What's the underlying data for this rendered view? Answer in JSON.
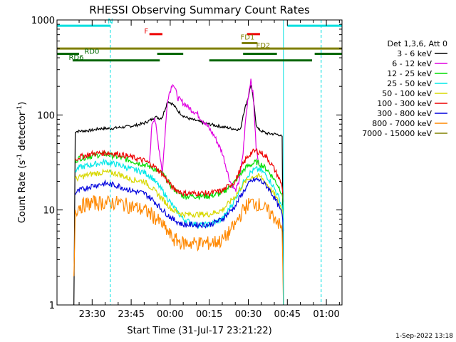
{
  "chart_data": {
    "type": "line",
    "title": "RHESSI Observing Summary Count Rates",
    "xlabel": "Start Time (31-Jul-17 23:21:22)",
    "ylabel_parts": [
      "Count Rate (s",
      "-1",
      " detector",
      "-1",
      ")"
    ],
    "footer": "1-Sep-2022 13:18",
    "scale_y": "log",
    "xlim_min": [
      -8.5,
      101
    ],
    "ylim": [
      1,
      1000
    ],
    "x_ticks": [
      {
        "v": 5,
        "label": "23:30"
      },
      {
        "v": 20,
        "label": "23:45"
      },
      {
        "v": 35,
        "label": "00:00"
      },
      {
        "v": 50,
        "label": "00:15"
      },
      {
        "v": 65,
        "label": "00:30"
      },
      {
        "v": 80,
        "label": "00:45"
      },
      {
        "v": 95,
        "label": "01:00"
      }
    ],
    "y_ticks": [
      {
        "v": 1,
        "label": "1"
      },
      {
        "v": 10,
        "label": "10"
      },
      {
        "v": 100,
        "label": "100"
      },
      {
        "v": 1000,
        "label": "1000"
      }
    ],
    "legend_header": "Det 1,3,6, Att 0",
    "legend_placement": "right",
    "series": [
      {
        "name": "3 - 6 keV",
        "color": "#000000",
        "x": [
          -2,
          -1.5,
          5,
          8,
          12,
          16,
          18,
          22,
          25,
          28,
          29,
          31,
          32,
          34,
          36,
          38,
          40,
          42,
          45,
          48,
          52,
          55,
          60,
          62,
          63,
          64,
          65,
          66,
          67,
          68,
          69,
          70,
          72,
          75,
          77,
          78,
          78.5
        ],
        "y": [
          1,
          67,
          69,
          72,
          72,
          74,
          75,
          78,
          82,
          90,
          96,
          92,
          95,
          140,
          130,
          110,
          98,
          92,
          87,
          82,
          78,
          75,
          71,
          70,
          100,
          125,
          155,
          210,
          140,
          80,
          70,
          68,
          64,
          63,
          62,
          58,
          1
        ]
      },
      {
        "name": "6 - 12 keV",
        "color": "#e000e0",
        "x": [
          27,
          28,
          29,
          30,
          32,
          34,
          36,
          38,
          42,
          45,
          48,
          52,
          55,
          58,
          60,
          61,
          62,
          63,
          64,
          65,
          66,
          67,
          68,
          69
        ],
        "y": [
          30,
          82,
          95,
          60,
          25,
          150,
          220,
          150,
          120,
          105,
          85,
          60,
          40,
          20,
          16,
          18,
          25,
          40,
          90,
          160,
          240,
          150,
          45,
          30
        ]
      },
      {
        "name": "12 - 25 keV",
        "color": "#00dd00",
        "x": [
          -1.5,
          0,
          5,
          10,
          15,
          20,
          25,
          28,
          32,
          36,
          40,
          45,
          50,
          55,
          60,
          62,
          64,
          66,
          68,
          70,
          72,
          74,
          76,
          78,
          78.5
        ],
        "y": [
          33,
          35,
          37,
          39,
          36,
          33,
          30,
          28,
          24,
          17,
          14,
          14,
          14,
          15,
          20,
          24,
          28,
          30,
          32,
          30,
          27,
          23,
          19,
          15,
          10
        ]
      },
      {
        "name": "25 - 50 keV",
        "color": "#00e8e8",
        "x": [
          -1.5,
          0,
          5,
          10,
          15,
          20,
          25,
          28,
          32,
          36,
          40,
          45,
          50,
          55,
          60,
          62,
          64,
          66,
          68,
          70,
          72,
          74,
          76,
          78,
          78.5
        ],
        "y": [
          26,
          28,
          30,
          32,
          30,
          27,
          25,
          22,
          16,
          11,
          8,
          7,
          7,
          8,
          13,
          17,
          22,
          25,
          27,
          26,
          23,
          19,
          15,
          11,
          8
        ]
      },
      {
        "name": "50 - 100 keV",
        "color": "#d8d800",
        "x": [
          -1.5,
          0,
          5,
          10,
          15,
          20,
          25,
          28,
          32,
          36,
          40,
          45,
          50,
          55,
          60,
          62,
          64,
          66,
          68,
          70,
          72,
          74,
          76,
          78,
          78.5
        ],
        "y": [
          21,
          22,
          24,
          25,
          24,
          21,
          20,
          17,
          13,
          10,
          9,
          9,
          9,
          10,
          14,
          17,
          20,
          22,
          23,
          22,
          19,
          16,
          13,
          10,
          8
        ]
      },
      {
        "name": "100 - 300 keV",
        "color": "#ee0000",
        "x": [
          -1.5,
          0,
          5,
          10,
          15,
          20,
          25,
          28,
          32,
          36,
          40,
          45,
          50,
          55,
          60,
          62,
          64,
          66,
          68,
          70,
          72,
          74,
          76,
          78,
          78.5
        ],
        "y": [
          34,
          36,
          39,
          40,
          39,
          36,
          33,
          30,
          24,
          17,
          15,
          15,
          15,
          16,
          20,
          27,
          34,
          40,
          42,
          40,
          36,
          30,
          24,
          18,
          12
        ]
      },
      {
        "name": "300 - 800 keV",
        "color": "#0000dd",
        "x": [
          -1.5,
          0,
          5,
          10,
          15,
          20,
          25,
          28,
          32,
          36,
          40,
          45,
          50,
          55,
          60,
          62,
          64,
          66,
          68,
          70,
          72,
          74,
          76,
          78,
          78.5
        ],
        "y": [
          15,
          16,
          18,
          19,
          18,
          16,
          15,
          13,
          10,
          8,
          7,
          7,
          7,
          8,
          11,
          14,
          17,
          20,
          21,
          20,
          18,
          15,
          12,
          9,
          6
        ]
      },
      {
        "name": "800 - 7000 keV",
        "color": "#ff8800",
        "x": [
          -2,
          -1.5,
          0,
          5,
          10,
          15,
          20,
          25,
          28,
          32,
          36,
          40,
          45,
          50,
          55,
          60,
          62,
          64,
          66,
          68,
          70,
          72,
          74,
          76,
          78,
          78.5
        ],
        "y": [
          2,
          10,
          11,
          12,
          12,
          12,
          11,
          10,
          9,
          7,
          5,
          4.5,
          4.5,
          4.5,
          4.8,
          7,
          9,
          11,
          12,
          12,
          11,
          10,
          9,
          8,
          6,
          1
        ]
      },
      {
        "name": "7000 - 15000 keV",
        "color": "#808000",
        "x": [
          -8.5,
          101
        ],
        "y": [
          500,
          500
        ]
      }
    ],
    "annotations": [
      {
        "label": "N",
        "x": 11,
        "level": 920,
        "color": "#00e0e0"
      },
      {
        "label": "F",
        "x": 25,
        "level": 720,
        "color": "#ee0000"
      },
      {
        "label": "FD1",
        "x": 62,
        "level": 620,
        "color": "#808000"
      },
      {
        "label": "FD2",
        "x": 68,
        "level": 510,
        "color": "#808000"
      },
      {
        "label": "RD0",
        "x": 2,
        "level": 440,
        "color": "#006600"
      },
      {
        "label": "RD6",
        "x": -4,
        "level": 380,
        "color": "#006600"
      }
    ],
    "state_bars": [
      {
        "name": "N",
        "color": "#00e0e0",
        "level": 870,
        "ranges": [
          [
            -8.5,
            12
          ],
          [
            80,
            101
          ]
        ]
      },
      {
        "name": "F",
        "color": "#ee0000",
        "level": 710,
        "ranges": [
          [
            27,
            32
          ],
          [
            64.5,
            69.5
          ]
        ]
      },
      {
        "name": "FD1",
        "color": "#808000",
        "level": 570,
        "ranges": [
          [
            62.5,
            68.5
          ]
        ]
      },
      {
        "name": "FD2",
        "color": "#808000",
        "level": 500,
        "ranges": [
          [
            -8.5,
            101
          ]
        ]
      },
      {
        "name": "RD0",
        "color": "#006600",
        "level": 440,
        "ranges": [
          [
            -8.5,
            0
          ],
          [
            30,
            40
          ],
          [
            63,
            76
          ],
          [
            90.5,
            101
          ]
        ]
      },
      {
        "name": "RD6",
        "color": "#006600",
        "level": 375,
        "ranges": [
          [
            -2.5,
            31
          ],
          [
            50,
            89.5
          ]
        ]
      }
    ],
    "vlines": [
      {
        "x": -8.5,
        "color": "#00e0e0",
        "dashed": false
      },
      {
        "x": 12,
        "color": "#00e0e0",
        "dashed": true
      },
      {
        "x": 78.5,
        "color": "#00e0e0",
        "dashed": false
      },
      {
        "x": 93,
        "color": "#00e0e0",
        "dashed": true
      }
    ],
    "grid": false
  }
}
